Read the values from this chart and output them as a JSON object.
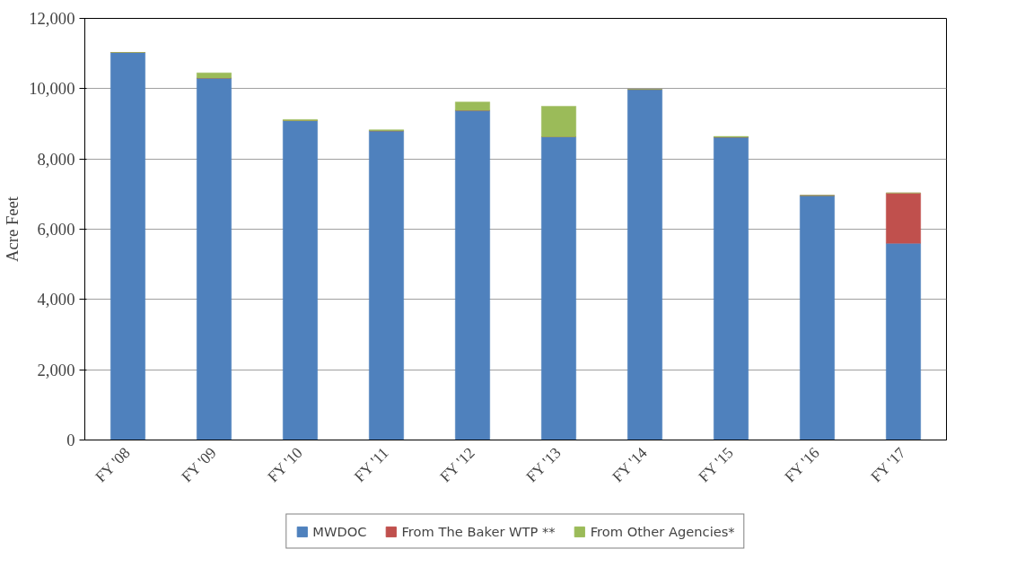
{
  "chart_data": {
    "type": "bar",
    "stacked": true,
    "ylabel": "Acre Feet",
    "categories": [
      "FY '08",
      "FY '09",
      "FY '10",
      "FY '11",
      "FY '12",
      "FY '13",
      "FY '14",
      "FY '15",
      "FY '16",
      "FY '17"
    ],
    "series": [
      {
        "name": "MWDOC",
        "color": "#4f81bd",
        "values": [
          11030,
          10300,
          9090,
          8800,
          9380,
          8630,
          9980,
          8620,
          6960,
          5600
        ]
      },
      {
        "name": "From The Baker WTP **",
        "color": "#c0504d",
        "values": [
          0,
          0,
          0,
          0,
          0,
          0,
          0,
          0,
          0,
          1430
        ]
      },
      {
        "name": "From Other Agencies*",
        "color": "#9bbb59",
        "values": [
          0,
          150,
          30,
          30,
          240,
          870,
          0,
          20,
          0,
          0
        ]
      }
    ],
    "ylim": [
      0,
      12000
    ],
    "yticks": [
      {
        "value": 0,
        "label": "0"
      },
      {
        "value": 2000,
        "label": "2,000"
      },
      {
        "value": 4000,
        "label": "4,000"
      },
      {
        "value": 6000,
        "label": "6,000"
      },
      {
        "value": 8000,
        "label": "8,000"
      },
      {
        "value": 10000,
        "label": "10,000"
      },
      {
        "value": 12000,
        "label": "12,000"
      }
    ],
    "grid": "y",
    "legend": "bottom"
  }
}
